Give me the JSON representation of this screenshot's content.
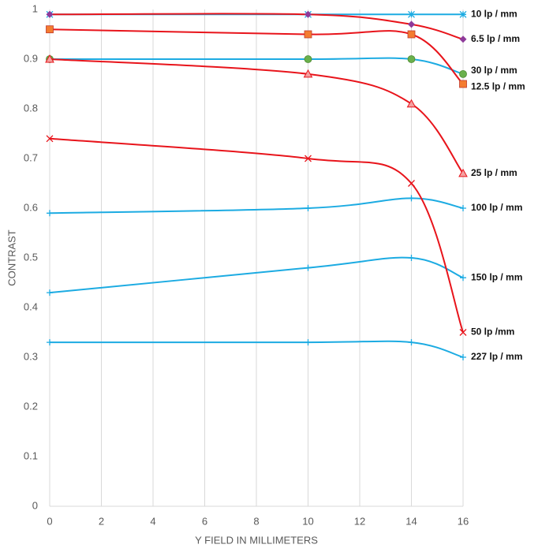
{
  "chart_data": {
    "type": "line",
    "xlabel": "Y FIELD IN MILLIMETERS",
    "ylabel": "CONTRAST",
    "x": [
      0,
      10,
      14,
      16
    ],
    "xlim": [
      0,
      16
    ],
    "xticks": [
      0,
      2,
      4,
      6,
      8,
      10,
      12,
      14,
      16
    ],
    "ylim": [
      0,
      1
    ],
    "yticks": [
      0,
      0.1,
      0.2,
      0.3,
      0.4,
      0.5,
      0.6,
      0.7,
      0.8,
      0.9,
      1
    ],
    "grid": "x",
    "series": [
      {
        "name": "10 lp / mm",
        "color": "#1cabe2",
        "marker": "asterisk",
        "marker_color": "#1cabe2",
        "values": [
          0.99,
          0.99,
          0.99,
          0.99
        ]
      },
      {
        "name": "6.5 lp / mm",
        "color": "#e8141b",
        "marker": "diamond",
        "marker_color": "#8e3a9a",
        "values": [
          0.99,
          0.99,
          0.97,
          0.94
        ]
      },
      {
        "name": "30 lp / mm",
        "color": "#1cabe2",
        "marker": "circle",
        "marker_color": "#6ab04c",
        "values": [
          0.9,
          0.9,
          0.9,
          0.87
        ]
      },
      {
        "name": "12.5 lp / mm",
        "color": "#e8141b",
        "marker": "square",
        "marker_color": "#f47c30",
        "values": [
          0.96,
          0.95,
          0.95,
          0.85
        ]
      },
      {
        "name": "25 lp / mm",
        "color": "#e8141b",
        "marker": "triangle",
        "marker_color": "#f4a0a0",
        "values": [
          0.9,
          0.87,
          0.81,
          0.67
        ]
      },
      {
        "name": "100 lp / mm",
        "color": "#1cabe2",
        "marker": "plus",
        "marker_color": "#1cabe2",
        "values": [
          0.59,
          0.6,
          0.62,
          0.6
        ]
      },
      {
        "name": "150 lp / mm",
        "color": "#1cabe2",
        "marker": "plus",
        "marker_color": "#1cabe2",
        "values": [
          0.43,
          0.48,
          0.5,
          0.46
        ]
      },
      {
        "name": "50 lp /mm",
        "color": "#e8141b",
        "marker": "x",
        "marker_color": "#e8141b",
        "values": [
          0.74,
          0.7,
          0.65,
          0.35
        ]
      },
      {
        "name": "227 lp / mm",
        "color": "#1cabe2",
        "marker": "plus",
        "marker_color": "#1cabe2",
        "values": [
          0.33,
          0.33,
          0.33,
          0.3
        ]
      }
    ]
  }
}
